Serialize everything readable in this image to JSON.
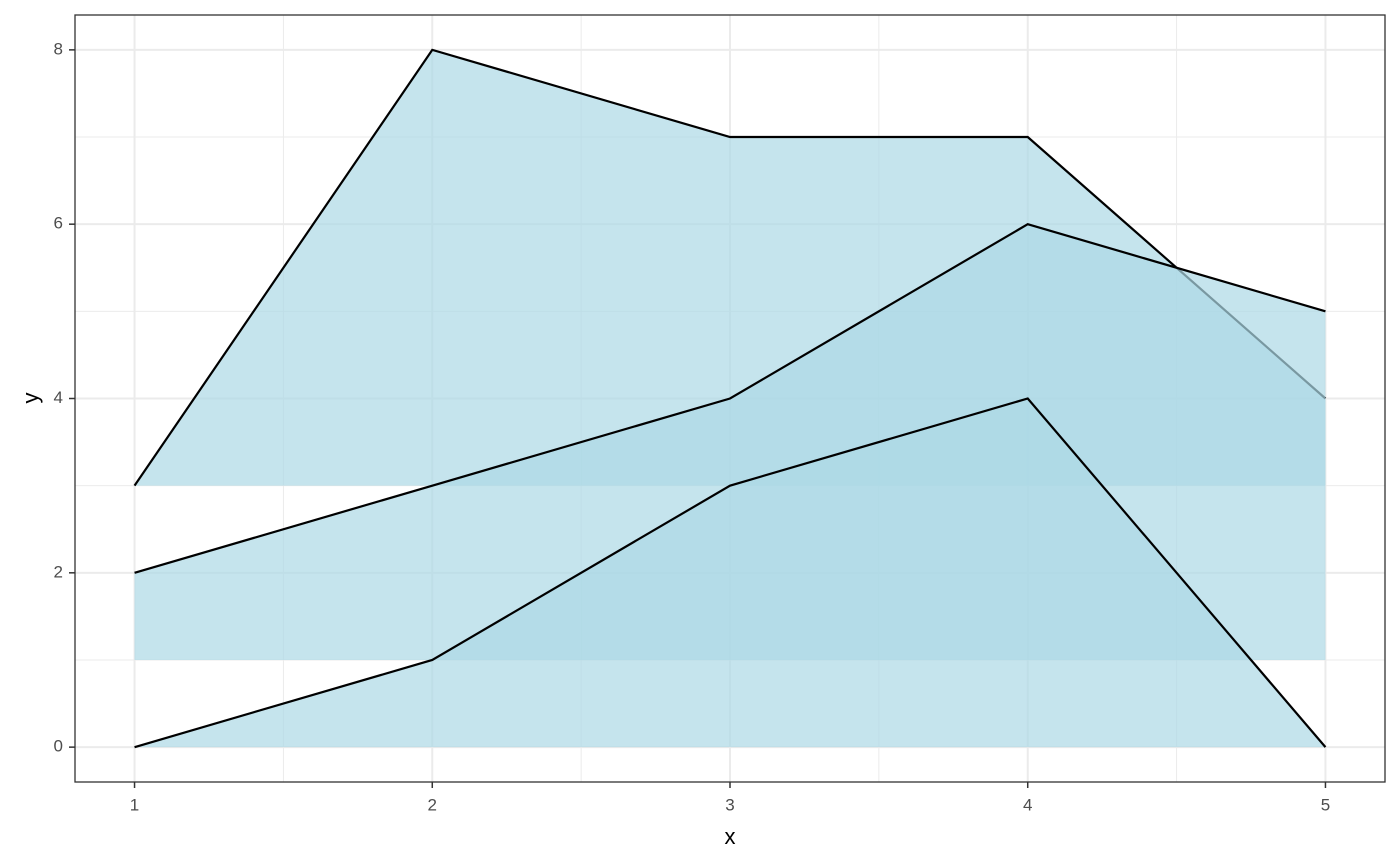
{
  "chart_data": {
    "type": "area",
    "x_label": "x",
    "y_label": "y",
    "x": [
      1,
      2,
      3,
      4,
      5
    ],
    "series": [
      {
        "base": 3,
        "values": [
          3,
          8,
          7,
          7,
          4
        ],
        "color": "#add8e6"
      },
      {
        "base": 1,
        "values": [
          2,
          3,
          4,
          6,
          5
        ],
        "color": "#add8e6"
      },
      {
        "base": 0,
        "values": [
          0,
          1,
          3,
          4,
          0
        ],
        "color": "#add8e6"
      }
    ],
    "line_color": "#000000",
    "fill_opacity": 0.7,
    "xlim": [
      0.8,
      5.2
    ],
    "ylim": [
      -0.4,
      8.4
    ],
    "xticks": [
      1,
      2,
      3,
      4,
      5
    ],
    "yticks": [
      0,
      2,
      4,
      6,
      8
    ],
    "grid": true
  }
}
